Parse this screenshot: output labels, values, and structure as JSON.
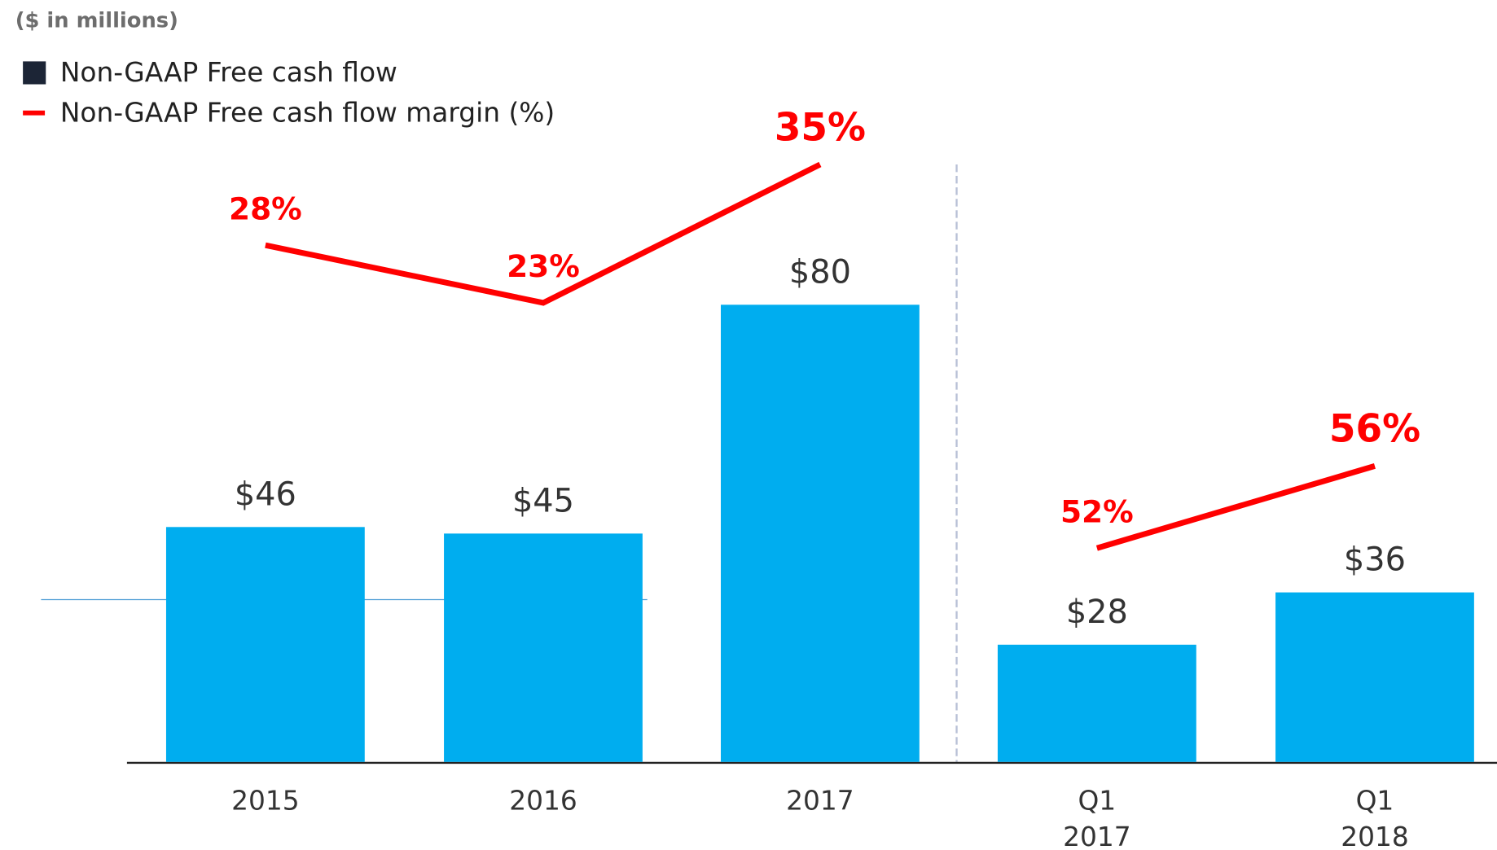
{
  "chart_data": {
    "type": "bar-line",
    "subtitle": "($ in millions)",
    "categories": [
      [
        "2015"
      ],
      [
        "2016"
      ],
      [
        "2017"
      ],
      [
        "Q1",
        "2017"
      ],
      [
        "Q1",
        "2018"
      ]
    ],
    "series": [
      {
        "name": "Non-GAAP Free cash flow",
        "type": "bar",
        "color": "#00adef",
        "legend_color": "#1c2536",
        "values": [
          46,
          45,
          80,
          28,
          36
        ],
        "value_labels": [
          "$46",
          "$45",
          "$80",
          "$28",
          "$36"
        ]
      },
      {
        "name": "Non-GAAP Free cash flow margin (%)",
        "type": "line",
        "color": "#ff0000",
        "values": [
          28,
          23,
          35,
          52,
          56
        ],
        "value_labels": [
          "28%",
          "23%",
          "35%",
          "52%",
          "56%"
        ]
      }
    ]
  }
}
